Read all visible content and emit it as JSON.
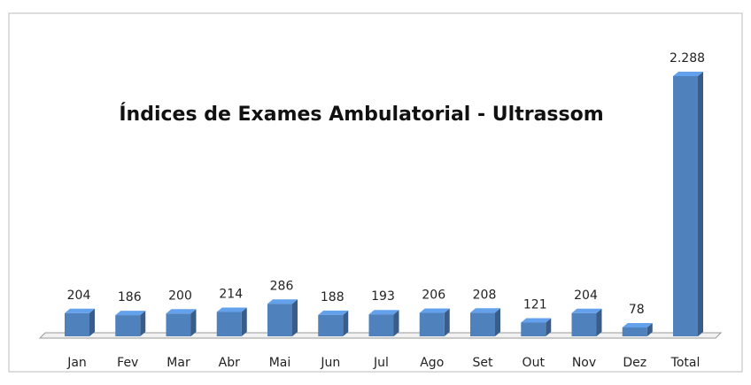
{
  "chart_data": {
    "type": "bar3d",
    "title": "Índices de Exames Ambulatorial - Ultrassom",
    "categories": [
      "Jan",
      "Fev",
      "Mar",
      "Abr",
      "Mai",
      "Jun",
      "Jul",
      "Ago",
      "Set",
      "Out",
      "Nov",
      "Dez",
      "Total"
    ],
    "values": [
      204,
      186,
      200,
      214,
      286,
      188,
      193,
      206,
      208,
      121,
      204,
      78,
      2288
    ],
    "value_labels": [
      "204",
      "186",
      "200",
      "214",
      "286",
      "188",
      "193",
      "206",
      "208",
      "121",
      "204",
      "78",
      "2.288"
    ],
    "color": "#4f81bd"
  }
}
